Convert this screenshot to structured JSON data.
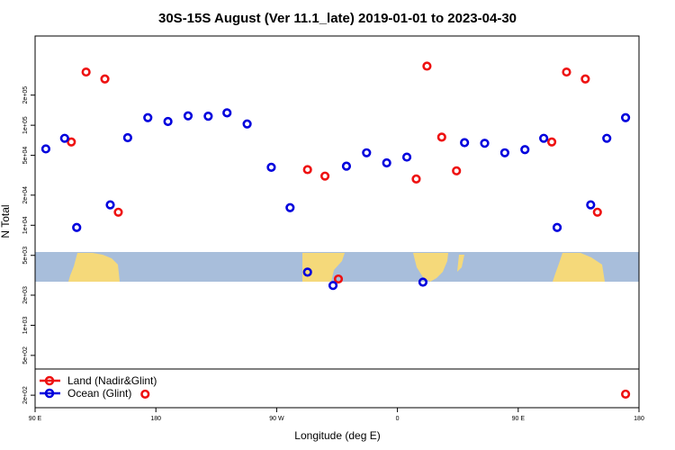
{
  "chart_data": {
    "type": "scatter",
    "title": "30S-15S August (Ver 11.1_late)   2019-01-01 to 2023-04-30",
    "xlabel": "Longitude (deg E)",
    "ylabel": "N Total",
    "x_scale": "longitude",
    "y_scale": "log",
    "xlim": [
      90,
      540
    ],
    "ylim": [
      150,
      780000
    ],
    "x_ticks": [
      {
        "value": 90,
        "label": "90 E"
      },
      {
        "value": 180,
        "label": "180"
      },
      {
        "value": 270,
        "label": "90 W"
      },
      {
        "value": 360,
        "label": "0"
      },
      {
        "value": 450,
        "label": "90 E"
      },
      {
        "value": 540,
        "label": "180"
      }
    ],
    "y_ticks": [
      {
        "value": 200,
        "label": "2e+02"
      },
      {
        "value": 500,
        "label": "5e+02"
      },
      {
        "value": 1000,
        "label": "1e+03"
      },
      {
        "value": 2000,
        "label": "2e+03"
      },
      {
        "value": 5000,
        "label": "5e+03"
      },
      {
        "value": 10000,
        "label": "1e+04"
      },
      {
        "value": 20000,
        "label": "2e+04"
      },
      {
        "value": 50000,
        "label": "5e+04"
      },
      {
        "value": 100000,
        "label": "1e+05"
      },
      {
        "value": 200000,
        "label": "2e+05"
      }
    ],
    "grid": false,
    "legend_position": "bottom-left",
    "series": [
      {
        "name": "Land (Nadir&Glint)",
        "color": "#ee1111",
        "points": [
          [
            117,
            68000
          ],
          [
            128,
            340000
          ],
          [
            142,
            290000
          ],
          [
            152,
            13500
          ],
          [
            172,
            205
          ],
          [
            293,
            36000
          ],
          [
            306,
            31000
          ],
          [
            316,
            2900
          ],
          [
            374,
            29000
          ],
          [
            382,
            390000
          ],
          [
            393,
            76000
          ],
          [
            404,
            35000
          ],
          [
            475,
            68000
          ],
          [
            486,
            340000
          ],
          [
            500,
            290000
          ],
          [
            509,
            13500
          ],
          [
            530,
            205
          ]
        ]
      },
      {
        "name": "Ocean (Glint)",
        "color": "#0000dd",
        "points": [
          [
            98,
            58000
          ],
          [
            112,
            74000
          ],
          [
            121,
            9500
          ],
          [
            146,
            16000
          ],
          [
            159,
            75000
          ],
          [
            174,
            119000
          ],
          [
            189,
            109000
          ],
          [
            204,
            124000
          ],
          [
            219,
            123000
          ],
          [
            233,
            133000
          ],
          [
            248,
            103000
          ],
          [
            266,
            38000
          ],
          [
            280,
            15000
          ],
          [
            293,
            3400
          ],
          [
            312,
            2500
          ],
          [
            322,
            39000
          ],
          [
            337,
            53000
          ],
          [
            352,
            42000
          ],
          [
            367,
            48000
          ],
          [
            379,
            2700
          ],
          [
            410,
            67000
          ],
          [
            425,
            66000
          ],
          [
            440,
            53000
          ],
          [
            455,
            57000
          ],
          [
            469,
            74000
          ],
          [
            479,
            9500
          ],
          [
            504,
            16000
          ],
          [
            516,
            74000
          ],
          [
            530,
            119000
          ]
        ]
      }
    ]
  }
}
